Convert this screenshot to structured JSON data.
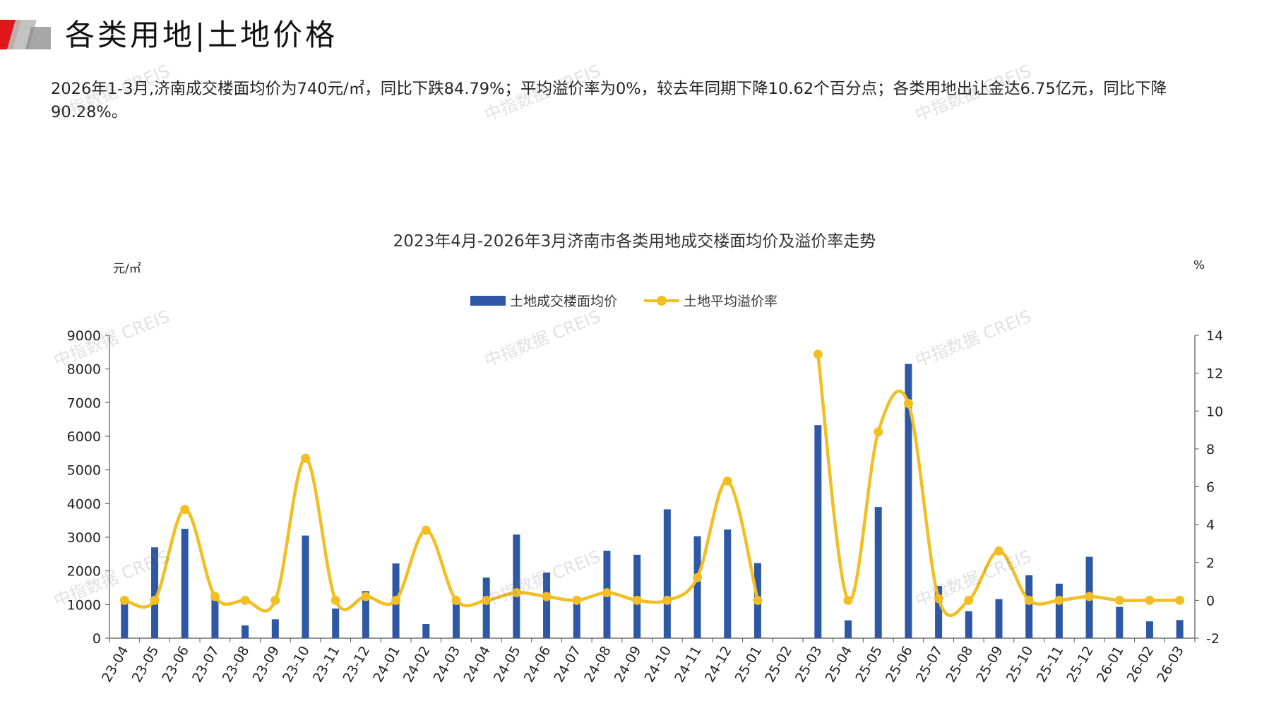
{
  "page": {
    "title": "各类用地|土地价格",
    "summary": "2026年1-3月,济南成交楼面均价为740元/㎡，同比下跌84.79%；平均溢价率为0%，较去年同期下降10.62个百分点；各类用地出让金达6.75亿元，同比下降90.28%。",
    "watermark": "中指数据 CREIS"
  },
  "colors": {
    "bar": "#2E58A6",
    "line": "#F2BE22",
    "accent_red": "#E0161B"
  },
  "chart_data": {
    "type": "bar",
    "title": "2023年4月-2026年3月济南市各类用地成交楼面均价及溢价率走势",
    "y_left_unit": "元/㎡",
    "y_right_unit": "%",
    "y_left_lim": [
      0,
      9000
    ],
    "y_left_ticks": [
      0,
      1000,
      2000,
      3000,
      4000,
      5000,
      6000,
      7000,
      8000,
      9000
    ],
    "y_right_lim": [
      -2,
      14
    ],
    "y_right_ticks": [
      -2,
      0,
      2,
      4,
      6,
      8,
      10,
      12,
      14
    ],
    "legend_position": "top-center",
    "grid": false,
    "categories": [
      "23-04",
      "23-05",
      "23-06",
      "23-07",
      "23-08",
      "23-09",
      "23-10",
      "23-11",
      "23-12",
      "24-01",
      "24-02",
      "24-03",
      "24-04",
      "24-05",
      "24-06",
      "24-07",
      "24-08",
      "24-09",
      "24-10",
      "24-11",
      "24-12",
      "25-01",
      "25-02",
      "25-03",
      "25-04",
      "25-05",
      "25-06",
      "25-07",
      "25-08",
      "25-09",
      "25-10",
      "25-11",
      "25-12",
      "26-01",
      "26-02",
      "26-03"
    ],
    "series": [
      {
        "name": "土地成交楼面均价",
        "type": "bar",
        "axis": "left",
        "values": [
          1050,
          2700,
          3250,
          1250,
          380,
          560,
          3050,
          880,
          1400,
          2220,
          420,
          1150,
          1800,
          3080,
          1950,
          1100,
          2600,
          2480,
          3830,
          3030,
          3230,
          2230,
          0,
          6330,
          530,
          3900,
          8150,
          1550,
          800,
          1160,
          1870,
          1620,
          2420,
          930,
          500,
          540
        ]
      },
      {
        "name": "土地平均溢价率",
        "type": "line",
        "axis": "right",
        "values": [
          0,
          0,
          4.8,
          0.2,
          0,
          0,
          7.5,
          0,
          0.2,
          0,
          3.7,
          0,
          0,
          0.4,
          0.2,
          0,
          0.4,
          0,
          0,
          1.2,
          6.3,
          0,
          null,
          13,
          0,
          8.9,
          10.4,
          0.1,
          0,
          2.6,
          0,
          0,
          0.2,
          0,
          0,
          0
        ]
      }
    ]
  }
}
